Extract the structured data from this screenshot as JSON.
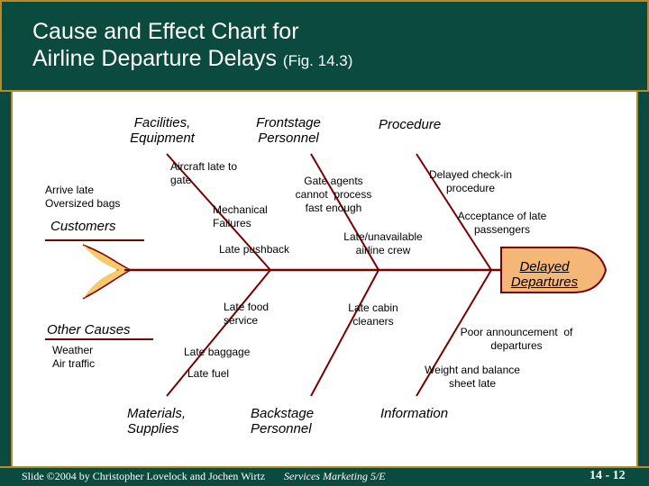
{
  "header": {
    "title_line1": "Cause and Effect Chart for",
    "title_line2": "Airline Departure Delays",
    "title_fig": "(Fig. 14.3)"
  },
  "colors": {
    "header_bg": "#0b4a3e",
    "gold_rule": "#b98a2a",
    "bone_lines": "#7a0000",
    "effect_fill": "#f4b777",
    "tail_fill": "#f5ca6a"
  },
  "diagram": {
    "effect": "Delayed\nDepartures",
    "categories": {
      "facilities": "Facilities,\nEquipment",
      "frontstage": "Frontstage\nPersonnel",
      "procedure": "Procedure",
      "customers": "Customers",
      "other": "Other Causes",
      "materials": "Materials,\nSupplies",
      "backstage": "Backstage\nPersonnel",
      "information": "Information"
    },
    "causes": {
      "arrive_late": "Arrive late\nOversized bags",
      "aircraft_late": "Aircraft late to\ngate",
      "gate_agents": "Gate agents\ncannot  process\nfast enough",
      "mechanical": "Mechanical\nFailures",
      "late_pushback": "Late pushback",
      "delayed_checkin": "Delayed check-in\nprocedure",
      "acceptance": "Acceptance of late\npassengers",
      "crew": "Late/unavailable\nairline crew",
      "weather": "Weather\nAir traffic",
      "late_food": "Late food\nservice",
      "late_baggage": "Late baggage",
      "late_fuel": "Late fuel",
      "cabin_cleaners": "Late cabin\ncleaners",
      "announcement": "Poor announcement  of\ndepartures",
      "weight_balance": "Weight and balance\nsheet late"
    }
  },
  "footer": {
    "copyright": "Slide ©2004  by Christopher Lovelock and Jochen Wirtz",
    "course": "Services Marketing 5/E",
    "page": "14 -  12"
  }
}
